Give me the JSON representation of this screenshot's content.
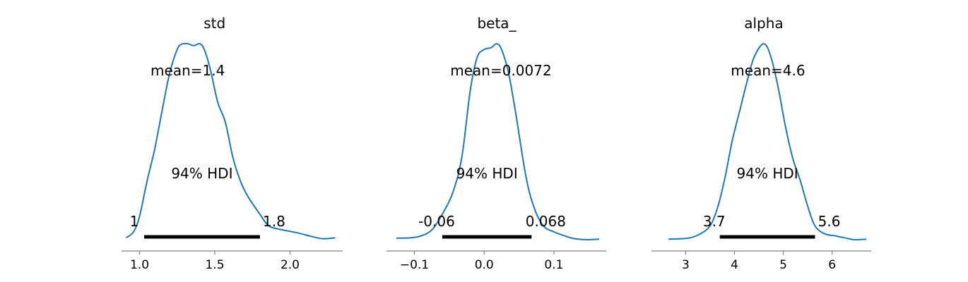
{
  "colors": {
    "density": "#1f77b4",
    "hdi_bar": "#000000",
    "axis": "#808080"
  },
  "chart_data": [
    {
      "type": "area",
      "title": "std",
      "xlim": [
        0.88,
        2.35
      ],
      "xticks": [
        1.0,
        1.5,
        2.0
      ],
      "xtick_labels": [
        "1.0",
        "1.5",
        "2.0"
      ],
      "mean_label": "mean=1.4",
      "hdi_label": "94% HDI",
      "hdi": [
        1.03,
        1.8
      ],
      "hdi_low_label": "1",
      "hdi_high_label": "1.8",
      "density": {
        "x": [
          0.91,
          0.96,
          1.0,
          1.05,
          1.1,
          1.15,
          1.2,
          1.25,
          1.28,
          1.32,
          1.36,
          1.4,
          1.43,
          1.47,
          1.52,
          1.57,
          1.62,
          1.67,
          1.72,
          1.8,
          1.86,
          1.95,
          2.05,
          2.15,
          2.22,
          2.3
        ],
        "y": [
          0.01,
          0.04,
          0.12,
          0.3,
          0.46,
          0.66,
          0.85,
          0.97,
          0.998,
          1.0,
          0.99,
          1.0,
          0.97,
          0.87,
          0.7,
          0.6,
          0.42,
          0.3,
          0.22,
          0.13,
          0.07,
          0.05,
          0.035,
          0.015,
          0.005,
          0.01
        ]
      }
    },
    {
      "type": "area",
      "title": "beta_",
      "xlim": [
        -0.14,
        0.175
      ],
      "xticks": [
        -0.1,
        0.0,
        0.1
      ],
      "xtick_labels": [
        "−0.1",
        "0.0",
        "0.1"
      ],
      "mean_label": "mean=0.0072",
      "hdi_label": "94% HDI",
      "hdi": [
        -0.06,
        0.068
      ],
      "hdi_low_label": "-0.06",
      "hdi_high_label": "0.068",
      "density": {
        "x": [
          -0.126,
          -0.105,
          -0.09,
          -0.075,
          -0.06,
          -0.045,
          -0.032,
          -0.02,
          -0.01,
          0.0,
          0.01,
          0.018,
          0.025,
          0.035,
          0.045,
          0.06,
          0.072,
          0.085,
          0.1,
          0.115,
          0.13,
          0.15,
          0.165
        ],
        "y": [
          0.008,
          0.01,
          0.02,
          0.05,
          0.13,
          0.24,
          0.42,
          0.76,
          0.93,
          0.97,
          0.98,
          1.0,
          0.97,
          0.85,
          0.65,
          0.32,
          0.16,
          0.07,
          0.04,
          0.02,
          0.005,
          0.0,
          0.003
        ]
      }
    },
    {
      "type": "area",
      "title": "alpha",
      "xlim": [
        2.3,
        6.8
      ],
      "xticks": [
        3,
        4,
        5,
        6
      ],
      "xtick_labels": [
        "3",
        "4",
        "5",
        "6"
      ],
      "mean_label": "mean=4.6",
      "hdi_label": "94% HDI",
      "hdi": [
        3.7,
        5.65
      ],
      "hdi_low_label": "3.7",
      "hdi_high_label": "5.6",
      "density": {
        "x": [
          2.65,
          2.9,
          3.1,
          3.3,
          3.5,
          3.65,
          3.8,
          3.95,
          4.1,
          4.25,
          4.4,
          4.6,
          4.75,
          4.9,
          5.05,
          5.2,
          5.35,
          5.5,
          5.65,
          5.85,
          6.05,
          6.25,
          6.45,
          6.7
        ],
        "y": [
          0.003,
          0.005,
          0.01,
          0.03,
          0.07,
          0.16,
          0.31,
          0.5,
          0.65,
          0.8,
          0.93,
          1.0,
          0.93,
          0.77,
          0.57,
          0.41,
          0.3,
          0.17,
          0.07,
          0.03,
          0.02,
          0.01,
          0.0,
          0.003
        ]
      }
    }
  ]
}
